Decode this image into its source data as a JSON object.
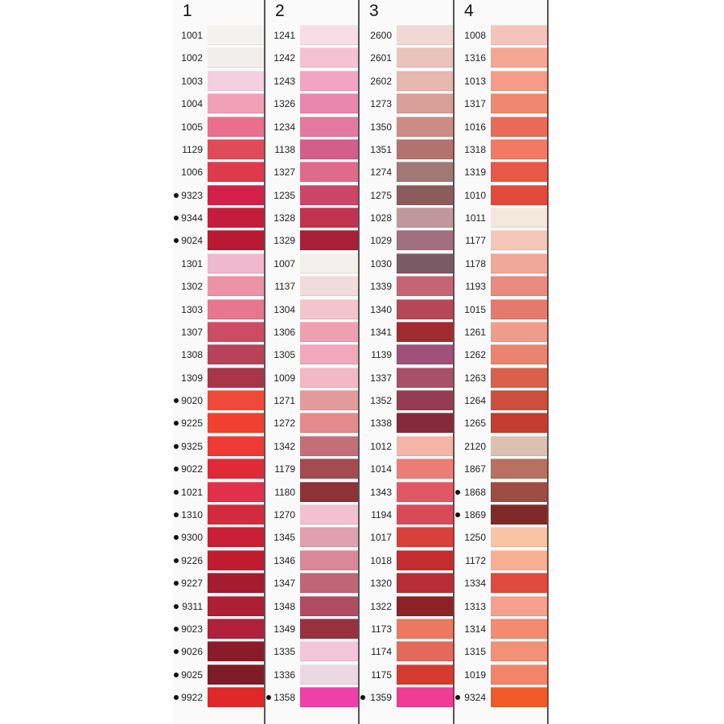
{
  "columns": [
    {
      "title": "1",
      "rows": [
        {
          "code": "1001",
          "color": "#f4f2f0"
        },
        {
          "code": "1002",
          "color": "#f2eeec"
        },
        {
          "code": "1003",
          "color": "#f4cfe0"
        },
        {
          "code": "1004",
          "color": "#f1a0b8"
        },
        {
          "code": "1005",
          "color": "#ea6f8c"
        },
        {
          "code": "1129",
          "color": "#e04b5a"
        },
        {
          "code": "1006",
          "color": "#dd3a4c"
        },
        {
          "code": "9323",
          "color": "#d2204a",
          "bullet": true
        },
        {
          "code": "9344",
          "color": "#c51c3c",
          "bullet": true
        },
        {
          "code": "9024",
          "color": "#b81a33",
          "bullet": true
        },
        {
          "code": "1301",
          "color": "#f0b8cc"
        },
        {
          "code": "1302",
          "color": "#ec93a8"
        },
        {
          "code": "1303",
          "color": "#e6778e"
        },
        {
          "code": "1307",
          "color": "#cc4c66"
        },
        {
          "code": "1308",
          "color": "#b84258"
        },
        {
          "code": "1309",
          "color": "#a83549"
        },
        {
          "code": "9020",
          "color": "#f04a3a",
          "bullet": true
        },
        {
          "code": "9225",
          "color": "#f2402f",
          "bullet": true
        },
        {
          "code": "9325",
          "color": "#ee3a34",
          "bullet": true
        },
        {
          "code": "9022",
          "color": "#e02a38",
          "bullet": true
        },
        {
          "code": "1021",
          "color": "#e2304a",
          "bullet": true
        },
        {
          "code": "1310",
          "color": "#d42a3e",
          "bullet": true
        },
        {
          "code": "9300",
          "color": "#c81f35",
          "bullet": true
        },
        {
          "code": "9226",
          "color": "#c01c30",
          "bullet": true
        },
        {
          "code": "9227",
          "color": "#a61c2e",
          "bullet": true
        },
        {
          "code": "9311",
          "color": "#ad1f35",
          "bullet": true
        },
        {
          "code": "9023",
          "color": "#b0203a",
          "bullet": true
        },
        {
          "code": "9026",
          "color": "#8a1c2a",
          "bullet": true
        },
        {
          "code": "9025",
          "color": "#7e1c28",
          "bullet": true
        },
        {
          "code": "9922",
          "color": "#e02828",
          "bullet": true
        }
      ]
    },
    {
      "title": "2",
      "rows": [
        {
          "code": "1241",
          "color": "#f7dde6"
        },
        {
          "code": "1242",
          "color": "#f5c2d4"
        },
        {
          "code": "1243",
          "color": "#f2a5c2"
        },
        {
          "code": "1326",
          "color": "#e886ae"
        },
        {
          "code": "1234",
          "color": "#e47aa0"
        },
        {
          "code": "1138",
          "color": "#d45e8a"
        },
        {
          "code": "1327",
          "color": "#e06a8c"
        },
        {
          "code": "1235",
          "color": "#cc4466"
        },
        {
          "code": "1328",
          "color": "#c23250"
        },
        {
          "code": "1329",
          "color": "#a81f38"
        },
        {
          "code": "1007",
          "color": "#f2f0ec"
        },
        {
          "code": "1137",
          "color": "#f0dcdc"
        },
        {
          "code": "1304",
          "color": "#f2c4cc"
        },
        {
          "code": "1306",
          "color": "#ef9fb2"
        },
        {
          "code": "1305",
          "color": "#f0a8bc"
        },
        {
          "code": "1009",
          "color": "#f2b8c4"
        },
        {
          "code": "1271",
          "color": "#e29a9a"
        },
        {
          "code": "1272",
          "color": "#e48a8c"
        },
        {
          "code": "1342",
          "color": "#c46e78"
        },
        {
          "code": "1179",
          "color": "#a44a50"
        },
        {
          "code": "1180",
          "color": "#8c3238"
        },
        {
          "code": "1270",
          "color": "#f2c0d0"
        },
        {
          "code": "1345",
          "color": "#e0a0b0"
        },
        {
          "code": "1346",
          "color": "#d88898"
        },
        {
          "code": "1347",
          "color": "#c06478"
        },
        {
          "code": "1348",
          "color": "#b04c60"
        },
        {
          "code": "1349",
          "color": "#98303e"
        },
        {
          "code": "1335",
          "color": "#f2c6d8"
        },
        {
          "code": "1336",
          "color": "#ecd8e2"
        },
        {
          "code": "1358",
          "color": "#f040a8",
          "bullet": true
        }
      ]
    },
    {
      "title": "3",
      "rows": [
        {
          "code": "2600",
          "color": "#f0d8d4"
        },
        {
          "code": "2601",
          "color": "#e8c4bc"
        },
        {
          "code": "2602",
          "color": "#e6b8ae"
        },
        {
          "code": "1273",
          "color": "#d8a098"
        },
        {
          "code": "1350",
          "color": "#cc8c86"
        },
        {
          "code": "1351",
          "color": "#b2726e"
        },
        {
          "code": "1274",
          "color": "#a07874"
        },
        {
          "code": "1275",
          "color": "#8c5c5c"
        },
        {
          "code": "1028",
          "color": "#c0989c"
        },
        {
          "code": "1029",
          "color": "#a07080"
        },
        {
          "code": "1030",
          "color": "#7a5a64"
        },
        {
          "code": "1339",
          "color": "#c46474"
        },
        {
          "code": "1340",
          "color": "#b44858"
        },
        {
          "code": "1341",
          "color": "#a02c30"
        },
        {
          "code": "1139",
          "color": "#a0507a"
        },
        {
          "code": "1337",
          "color": "#a8506a"
        },
        {
          "code": "1352",
          "color": "#963c52"
        },
        {
          "code": "1338",
          "color": "#842a3c"
        },
        {
          "code": "1012",
          "color": "#f4b4a8"
        },
        {
          "code": "1014",
          "color": "#ea7e76"
        },
        {
          "code": "1343",
          "color": "#e05864"
        },
        {
          "code": "1194",
          "color": "#d84a58"
        },
        {
          "code": "1017",
          "color": "#d8403c"
        },
        {
          "code": "1018",
          "color": "#c42c30"
        },
        {
          "code": "1320",
          "color": "#b82c38"
        },
        {
          "code": "1322",
          "color": "#8c2228"
        },
        {
          "code": "1173",
          "color": "#ec7860"
        },
        {
          "code": "1174",
          "color": "#e26a5a"
        },
        {
          "code": "1175",
          "color": "#d43c30"
        },
        {
          "code": "1359",
          "color": "#ee3c94",
          "bullet": true
        }
      ]
    },
    {
      "title": "4",
      "rows": [
        {
          "code": "1008",
          "color": "#f4c4bc"
        },
        {
          "code": "1316",
          "color": "#f4a894"
        },
        {
          "code": "1013",
          "color": "#f49c88"
        },
        {
          "code": "1317",
          "color": "#f08870"
        },
        {
          "code": "1016",
          "color": "#ea6a58"
        },
        {
          "code": "1318",
          "color": "#f07a64"
        },
        {
          "code": "1319",
          "color": "#e85848"
        },
        {
          "code": "1010",
          "color": "#e44a3c"
        },
        {
          "code": "1011",
          "color": "#f4e8dc"
        },
        {
          "code": "1177",
          "color": "#f4c8b8"
        },
        {
          "code": "1178",
          "color": "#f0a898"
        },
        {
          "code": "1193",
          "color": "#e88a7e"
        },
        {
          "code": "1015",
          "color": "#e47a6c"
        },
        {
          "code": "1261",
          "color": "#ee9c8c"
        },
        {
          "code": "1262",
          "color": "#e88470"
        },
        {
          "code": "1263",
          "color": "#d8604c"
        },
        {
          "code": "1264",
          "color": "#cc4e3c"
        },
        {
          "code": "1265",
          "color": "#c43c30"
        },
        {
          "code": "2120",
          "color": "#dcc0b0"
        },
        {
          "code": "1867",
          "color": "#b87060"
        },
        {
          "code": "1868",
          "color": "#9c4c40",
          "bullet": true
        },
        {
          "code": "1869",
          "color": "#802a28",
          "bullet": true
        },
        {
          "code": "1250",
          "color": "#f8c4a4"
        },
        {
          "code": "1172",
          "color": "#f8b092"
        },
        {
          "code": "1334",
          "color": "#e04a3c"
        },
        {
          "code": "1313",
          "color": "#f4a08c"
        },
        {
          "code": "1314",
          "color": "#f48a70"
        },
        {
          "code": "1315",
          "color": "#f29078"
        },
        {
          "code": "1019",
          "color": "#f2846a"
        },
        {
          "code": "9324",
          "color": "#f05a28",
          "bullet": true
        }
      ]
    }
  ]
}
